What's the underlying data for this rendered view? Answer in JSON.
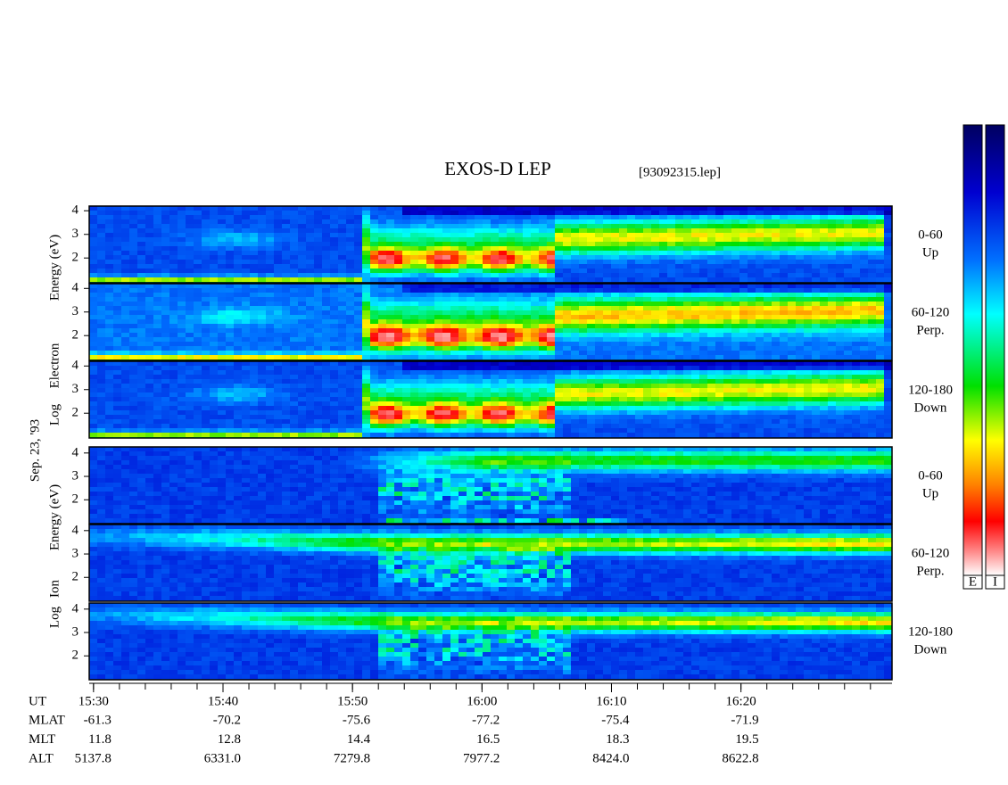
{
  "title": "EXOS-D LEP",
  "file": "[93092315.lep]",
  "date": "Sep. 23, '93",
  "colorbars": [
    "E",
    "I"
  ],
  "groups": [
    {
      "axis_label": [
        "Log",
        "Electron",
        "Energy (eV)"
      ],
      "ylim": [
        0.95,
        4.2
      ],
      "yticks": [
        2,
        3,
        4
      ],
      "panels": [
        {
          "label": [
            "0-60",
            "Up"
          ]
        },
        {
          "label": [
            "60-120",
            "Perp."
          ]
        },
        {
          "label": [
            "120-180",
            "Down"
          ]
        }
      ]
    },
    {
      "axis_label": [
        "Log",
        "Ion",
        "Energy (eV)"
      ],
      "ylim": [
        0.98,
        4.26
      ],
      "yticks": [
        2,
        3,
        4
      ],
      "panels": [
        {
          "label": [
            "0-60",
            "Up"
          ]
        },
        {
          "label": [
            "60-120",
            "Perp."
          ]
        },
        {
          "label": [
            "120-180",
            "Down"
          ]
        }
      ]
    }
  ],
  "time_axis": {
    "label": "UT",
    "xlim": [
      "15:29:40",
      "16:31:40"
    ],
    "ticks": [
      "15:30",
      "15:40",
      "15:50",
      "16:00",
      "16:10",
      "16:20"
    ]
  },
  "ephemeris": [
    {
      "name": "MLAT",
      "values": [
        "-61.3",
        "-70.2",
        "-75.6",
        "-77.2",
        "-75.4",
        "-71.9"
      ]
    },
    {
      "name": "MLT",
      "values": [
        "11.8",
        "12.8",
        "14.4",
        "16.5",
        "18.3",
        "19.5"
      ]
    },
    {
      "name": "ALT",
      "values": [
        "5137.8",
        "6331.0",
        "7279.8",
        "7977.2",
        "8424.0",
        "8622.8"
      ]
    }
  ]
}
